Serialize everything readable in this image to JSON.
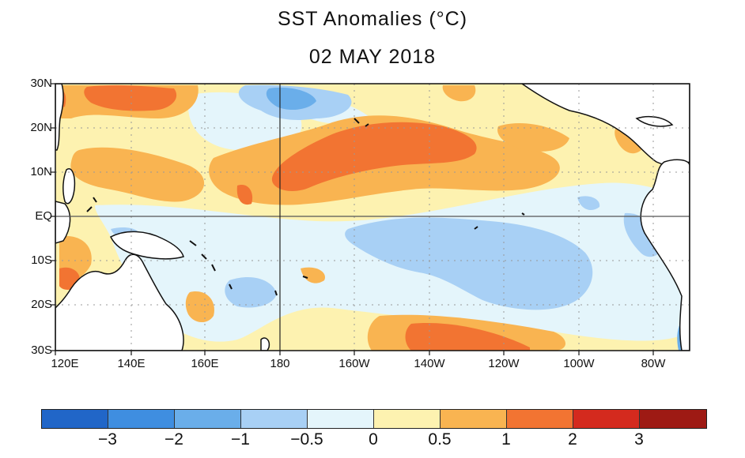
{
  "title": "SST Anomalies (°C)",
  "date": "02 MAY 2018",
  "lat_labels": [
    "30N",
    "20N",
    "10N",
    "EQ",
    "10S",
    "20S",
    "30S"
  ],
  "lon_labels": [
    "120E",
    "140E",
    "160E",
    "180",
    "160W",
    "140W",
    "120W",
    "100W",
    "80W"
  ],
  "legend": {
    "colors": [
      "#2166c8",
      "#3f8ee0",
      "#6aaeea",
      "#a8d0f5",
      "#e4f5fb",
      "#fdf2b0",
      "#f9b451",
      "#f27432",
      "#d42a1e",
      "#9e1a14"
    ],
    "ticks": [
      "−3",
      "−2",
      "−1",
      "−0.5",
      "0",
      "0.5",
      "1",
      "2",
      "3"
    ]
  },
  "palette": {
    "land": "#ffffff",
    "coast": "#111111",
    "grid": "#999999",
    "equator": "#555555",
    "dateline": "#222222"
  }
}
